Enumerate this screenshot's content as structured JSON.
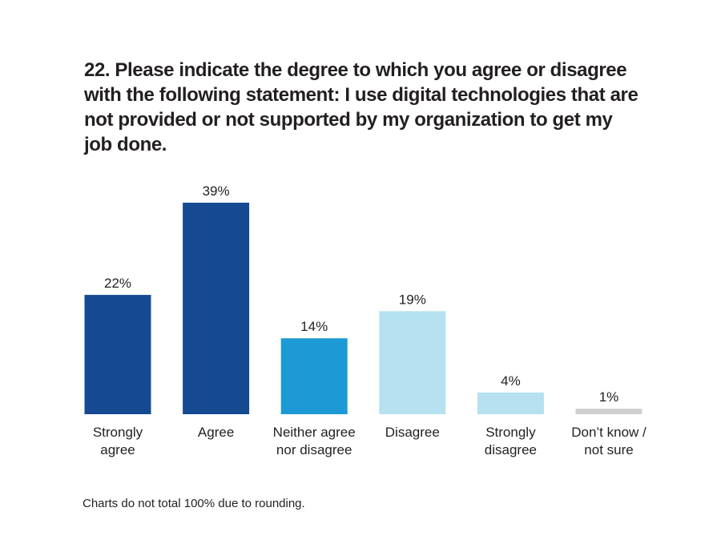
{
  "chart_data": {
    "type": "bar",
    "title": "22. Please indicate the degree to which you agree or disagree with the following statement: I use digital technologies that are not provided or not supported by my organization to get my job done.",
    "categories": [
      "Strongly agree",
      "Agree",
      "Neither agree nor disagree",
      "Disagree",
      "Strongly disagree",
      "Don’t know / not sure"
    ],
    "values": [
      22,
      39,
      14,
      19,
      4,
      1
    ],
    "value_labels": [
      "22%",
      "39%",
      "14%",
      "19%",
      "4%",
      "1%"
    ],
    "colors": [
      "#154a92",
      "#154a92",
      "#1b9ad6",
      "#b5e1f1",
      "#b5e1f1",
      "#cfcfcf"
    ],
    "note": "Charts do not total 100% due to rounding."
  }
}
